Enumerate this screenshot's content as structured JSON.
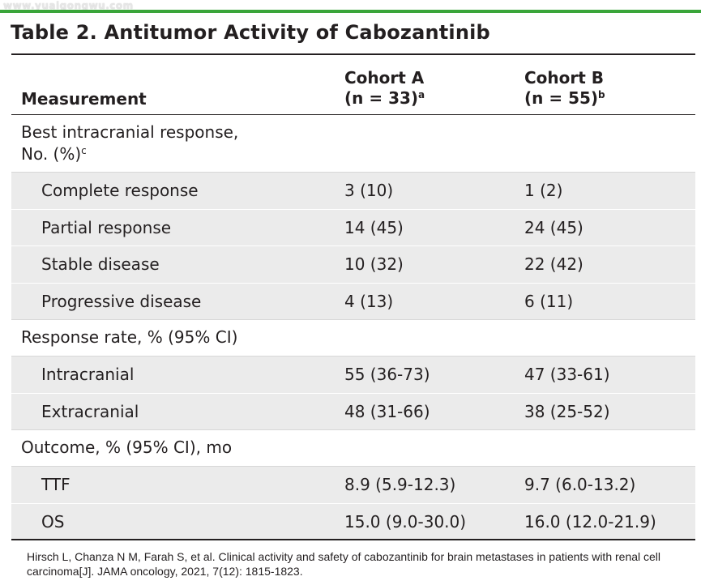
{
  "watermark": "www.yuaigongwu.com",
  "title": "Table 2. Antitumor Activity of Cabozantinib",
  "header": {
    "measurement": "Measurement",
    "cohort_a": {
      "name": "Cohort A",
      "n": "(n = 33)",
      "note": "a"
    },
    "cohort_b": {
      "name": "Cohort B",
      "n": "(n = 55)",
      "note": "b"
    }
  },
  "sections": [
    {
      "label_line1": "Best intracranial response,",
      "label_line2": "No. (%)",
      "note": "c",
      "rows": [
        {
          "label": "Complete response",
          "a": "3 (10)",
          "b": "1 (2)"
        },
        {
          "label": "Partial response",
          "a": "14 (45)",
          "b": "24 (45)"
        },
        {
          "label": "Stable disease",
          "a": "10 (32)",
          "b": "22 (42)"
        },
        {
          "label": "Progressive disease",
          "a": "4 (13)",
          "b": "6 (11)"
        }
      ]
    },
    {
      "label_line1": "Response rate, % (95% CI)",
      "rows": [
        {
          "label": "Intracranial",
          "a": "55 (36-73)",
          "b": "47 (33-61)"
        },
        {
          "label": "Extracranial",
          "a": "48 (31-66)",
          "b": "38 (25-52)"
        }
      ]
    },
    {
      "label_line1": "Outcome, % (95% CI), mo",
      "rows": [
        {
          "label": "TTF",
          "a": "8.9 (5.9-12.3)",
          "b": "9.7 (6.0-13.2)"
        },
        {
          "label": "OS",
          "a": "15.0 (9.0-30.0)",
          "b": "16.0 (12.0-21.9)"
        }
      ]
    }
  ],
  "citation": "Hirsch L, Chanza N M, Farah S, et al. Clinical activity and safety of cabozantinib for brain metastases in patients with renal cell carcinoma[J]. JAMA oncology, 2021, 7(12): 1815-1823.",
  "colors": {
    "accent_line": "#3aa53a",
    "row_shade": "#ebebeb",
    "text": "#231f20"
  }
}
